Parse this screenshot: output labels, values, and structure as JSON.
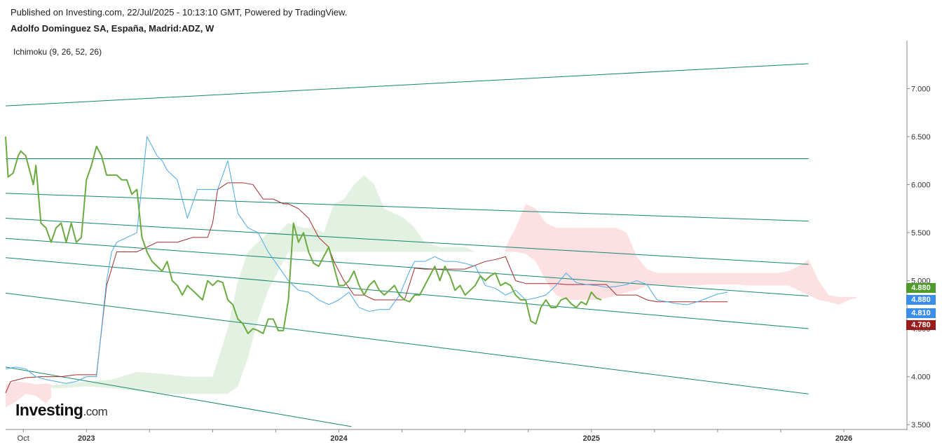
{
  "header": {
    "published": "Published on Investing.com, 22/Jul/2025 - 10:13:10 GMT, Powered by TradingView.",
    "title": "Adolfo Dominguez SA, España, Madrid:ADZ, W"
  },
  "indicator_label": "Ichimoku (9, 26, 52, 26)",
  "logo": {
    "main": "Investing",
    "suffix": ".com"
  },
  "colors": {
    "price": "#6aab3f",
    "conversion": "#4aa8e8",
    "base": "#a52a2a",
    "cloud_bull": "#e3f1e2",
    "cloud_bear": "#fde0e1",
    "trend": "#14876e",
    "axis": "#888888",
    "badge_green": "#4e9a2a",
    "badge_blue": "#3a8de8",
    "badge_red": "#9b1c1c"
  },
  "chart_data": {
    "type": "line",
    "ylim": [
      3.45,
      7.5
    ],
    "xlim": [
      2022.68,
      2026.25
    ],
    "y_ticks": [
      "3.500",
      "4.000",
      "4.500",
      "5.000",
      "5.500",
      "6.000",
      "6.500",
      "7.000"
    ],
    "y_tick_values": [
      3.5,
      4.0,
      4.5,
      5.0,
      5.5,
      6.0,
      6.5,
      7.0
    ],
    "x_ticks": [
      {
        "label": "Oct",
        "x": 2022.75
      },
      {
        "label": "2023",
        "x": 2023.0
      },
      {
        "label": "2024",
        "x": 2024.0
      },
      {
        "label": "2025",
        "x": 2025.0
      },
      {
        "label": "2026",
        "x": 2026.0
      }
    ],
    "x_minor_ticks": [
      2023.25,
      2023.5,
      2023.75,
      2024.25,
      2024.5,
      2024.75,
      2025.25,
      2025.5,
      2025.75
    ],
    "price_badges": [
      {
        "label": "4.880",
        "value": 4.88,
        "color": "#4e9a2a"
      },
      {
        "label": "4.880",
        "value": 4.88,
        "color": "#3a8de8"
      },
      {
        "label": "4.810",
        "value": 4.81,
        "color": "#3a8de8"
      },
      {
        "label": "4.780",
        "value": 4.78,
        "color": "#9b1c1c"
      }
    ],
    "series": [
      {
        "id": "price",
        "x": [
          2022.68,
          2022.69,
          2022.71,
          2022.73,
          2022.74,
          2022.76,
          2022.78,
          2022.79,
          2022.8,
          2022.82,
          2022.84,
          2022.86,
          2022.88,
          2022.9,
          2022.92,
          2022.94,
          2022.96,
          2022.98,
          2023.0,
          2023.02,
          2023.04,
          2023.06,
          2023.08,
          2023.1,
          2023.12,
          2023.14,
          2023.16,
          2023.18,
          2023.2,
          2023.22,
          2023.24,
          2023.26,
          2023.28,
          2023.3,
          2023.32,
          2023.34,
          2023.36,
          2023.38,
          2023.4,
          2023.42,
          2023.44,
          2023.46,
          2023.48,
          2023.5,
          2023.52,
          2023.54,
          2023.56,
          2023.58,
          2023.6,
          2023.62,
          2023.64,
          2023.66,
          2023.68,
          2023.7,
          2023.72,
          2023.74,
          2023.76,
          2023.78,
          2023.8,
          2023.82,
          2023.84,
          2023.86,
          2023.88,
          2023.9,
          2023.92,
          2023.94,
          2023.96,
          2023.98,
          2024.0,
          2024.02,
          2024.04,
          2024.06,
          2024.08,
          2024.1,
          2024.12,
          2024.14,
          2024.16,
          2024.18,
          2024.2,
          2024.22,
          2024.24,
          2024.26,
          2024.28,
          2024.3,
          2024.32,
          2024.34,
          2024.36,
          2024.38,
          2024.4,
          2024.42,
          2024.44,
          2024.46,
          2024.48,
          2024.5,
          2024.52,
          2024.54,
          2024.56,
          2024.58,
          2024.6,
          2024.62,
          2024.64,
          2024.66,
          2024.68,
          2024.7,
          2024.72,
          2024.74,
          2024.76,
          2024.78,
          2024.8,
          2024.82,
          2024.84,
          2024.86,
          2024.88,
          2024.9,
          2024.92,
          2024.94,
          2024.96,
          2024.98,
          2025.0,
          2025.02,
          2025.04
        ],
        "values": [
          6.5,
          6.08,
          6.12,
          6.3,
          6.35,
          6.3,
          6.1,
          6.0,
          6.2,
          5.6,
          5.55,
          5.4,
          5.55,
          5.6,
          5.4,
          5.6,
          5.4,
          5.45,
          6.05,
          6.2,
          6.4,
          6.3,
          6.1,
          6.1,
          6.1,
          6.05,
          6.05,
          5.9,
          5.95,
          5.45,
          5.3,
          5.2,
          5.15,
          5.1,
          5.2,
          5.0,
          4.95,
          4.85,
          4.95,
          4.9,
          4.85,
          4.8,
          5.0,
          4.95,
          5.0,
          4.98,
          4.8,
          4.75,
          4.6,
          4.55,
          4.45,
          4.5,
          4.48,
          4.45,
          4.6,
          4.6,
          4.48,
          4.48,
          4.8,
          5.6,
          5.4,
          5.5,
          5.3,
          5.18,
          5.15,
          5.25,
          5.35,
          5.15,
          4.95,
          4.95,
          5.0,
          5.1,
          4.95,
          4.85,
          4.95,
          5.0,
          4.9,
          4.85,
          4.9,
          4.95,
          4.85,
          4.8,
          4.78,
          4.85,
          4.85,
          4.95,
          5.05,
          5.15,
          5.0,
          5.15,
          5.05,
          4.9,
          4.95,
          4.85,
          4.9,
          4.95,
          5.05,
          5.0,
          5.05,
          5.08,
          4.95,
          4.98,
          4.95,
          4.85,
          4.8,
          4.8,
          4.58,
          4.55,
          4.72,
          4.8,
          4.72,
          4.72,
          4.8,
          4.82,
          4.76,
          4.72,
          4.78,
          4.75,
          4.88,
          4.82,
          4.8
        ]
      },
      {
        "id": "conversion",
        "x": [
          2022.68,
          2022.72,
          2022.76,
          2022.8,
          2022.84,
          2022.88,
          2022.92,
          2022.96,
          2023.0,
          2023.04,
          2023.08,
          2023.1,
          2023.12,
          2023.16,
          2023.2,
          2023.24,
          2023.28,
          2023.3,
          2023.32,
          2023.36,
          2023.4,
          2023.44,
          2023.46,
          2023.48,
          2023.52,
          2023.56,
          2023.6,
          2023.64,
          2023.68,
          2023.72,
          2023.76,
          2023.8,
          2023.84,
          2023.88,
          2023.92,
          2023.96,
          2024.0,
          2024.04,
          2024.08,
          2024.12,
          2024.16,
          2024.2,
          2024.24,
          2024.28,
          2024.3,
          2024.34,
          2024.38,
          2024.42,
          2024.46,
          2024.5,
          2024.54,
          2024.58,
          2024.62,
          2024.66,
          2024.7,
          2024.74,
          2024.78,
          2024.82,
          2024.86,
          2024.9,
          2024.94,
          2024.98,
          2025.02,
          2025.06,
          2025.1,
          2025.14,
          2025.18,
          2025.22,
          2025.26,
          2025.3,
          2025.34,
          2025.38,
          2025.42,
          2025.46,
          2025.5,
          2025.54
        ],
        "values": [
          4.08,
          4.1,
          4.08,
          4.0,
          3.97,
          3.95,
          3.93,
          3.95,
          4.0,
          4.0,
          5.0,
          5.3,
          5.4,
          5.45,
          5.5,
          6.5,
          6.3,
          6.25,
          6.15,
          6.05,
          5.65,
          5.95,
          5.95,
          5.95,
          5.95,
          6.25,
          5.7,
          5.55,
          5.5,
          5.3,
          5.15,
          5.0,
          4.9,
          4.88,
          4.8,
          4.75,
          4.8,
          4.88,
          4.72,
          4.68,
          4.7,
          4.7,
          4.85,
          5.1,
          5.2,
          5.2,
          5.25,
          5.2,
          5.2,
          5.18,
          5.15,
          4.95,
          4.92,
          4.85,
          4.9,
          4.8,
          4.82,
          4.85,
          4.95,
          5.08,
          4.98,
          4.96,
          4.95,
          4.93,
          4.94,
          4.96,
          5.0,
          4.96,
          4.8,
          4.78,
          4.76,
          4.75,
          4.78,
          4.82,
          4.86,
          4.88
        ]
      },
      {
        "id": "base",
        "x": [
          2022.68,
          2022.7,
          2022.76,
          2022.82,
          2022.9,
          2022.96,
          2023.0,
          2023.04,
          2023.08,
          2023.12,
          2023.2,
          2023.28,
          2023.36,
          2023.42,
          2023.48,
          2023.5,
          2023.52,
          2023.56,
          2023.62,
          2023.66,
          2023.7,
          2023.74,
          2023.78,
          2023.8,
          2023.84,
          2023.88,
          2023.92,
          2023.96,
          2023.98,
          2024.02,
          2024.06,
          2024.1,
          2024.14,
          2024.18,
          2024.22,
          2024.26,
          2024.3,
          2024.34,
          2024.38,
          2024.42,
          2024.46,
          2024.5,
          2024.54,
          2024.58,
          2024.62,
          2024.66,
          2024.7,
          2024.74,
          2024.78,
          2024.82,
          2024.86,
          2024.9,
          2024.94,
          2024.98,
          2025.02,
          2025.06,
          2025.1,
          2025.14,
          2025.18,
          2025.22,
          2025.26,
          2025.3,
          2025.34,
          2025.38,
          2025.42,
          2025.46,
          2025.5,
          2025.54
        ],
        "values": [
          3.83,
          3.95,
          3.99,
          4.0,
          4.0,
          4.02,
          4.02,
          4.02,
          4.95,
          5.3,
          5.3,
          5.4,
          5.4,
          5.45,
          5.45,
          5.6,
          5.95,
          6.02,
          6.02,
          6.0,
          5.85,
          5.85,
          5.8,
          5.8,
          5.75,
          5.65,
          5.45,
          5.35,
          5.2,
          5.0,
          4.85,
          4.85,
          4.8,
          4.8,
          4.8,
          4.8,
          5.13,
          5.12,
          5.12,
          5.12,
          5.12,
          5.12,
          5.16,
          5.2,
          5.22,
          5.25,
          5.0,
          4.97,
          4.97,
          4.97,
          4.97,
          4.96,
          4.96,
          4.96,
          4.96,
          4.96,
          4.85,
          4.85,
          4.85,
          4.8,
          4.78,
          4.78,
          4.78,
          4.78,
          4.78,
          4.78,
          4.78,
          4.78
        ]
      },
      {
        "id": "cloud_bull",
        "x": [
          2022.68,
          2022.8,
          2022.9,
          2023.0,
          2023.1,
          2023.2,
          2023.3,
          2023.4,
          2023.5,
          2023.56,
          2023.6,
          2023.64,
          2023.68,
          2023.72,
          2023.76,
          2023.8,
          2023.86,
          2023.9,
          2023.94,
          2023.98,
          2024.02,
          2024.06,
          2024.1,
          2024.14,
          2024.18,
          2024.22,
          2024.26,
          2024.3,
          2024.34,
          2024.4,
          2024.46,
          2024.5,
          2024.54,
          2024.58,
          2024.62,
          2024.66
        ],
        "upper": [
          3.88,
          3.9,
          3.92,
          3.95,
          3.97,
          4.05,
          4.03,
          4.0,
          4.0,
          4.5,
          5.0,
          5.3,
          5.4,
          5.5,
          5.5,
          5.6,
          5.55,
          5.55,
          5.5,
          5.8,
          5.85,
          6.0,
          6.1,
          6.0,
          5.75,
          5.7,
          5.65,
          5.55,
          5.4,
          5.35,
          5.35,
          5.35,
          5.3,
          5.3,
          5.3,
          5.3
        ],
        "lower": [
          3.88,
          3.88,
          3.88,
          3.9,
          3.88,
          3.85,
          3.82,
          3.82,
          3.82,
          3.82,
          3.9,
          4.2,
          4.6,
          4.9,
          5.1,
          5.3,
          5.3,
          5.3,
          5.3,
          5.3,
          5.3,
          5.3,
          5.3,
          5.3,
          5.3,
          5.3,
          5.3,
          5.3,
          5.3,
          5.3,
          5.3,
          5.3,
          5.3,
          5.3,
          5.3,
          5.3
        ]
      },
      {
        "id": "cloud_bear",
        "x": [
          2022.68,
          2022.72,
          2022.76,
          2022.8,
          2022.84,
          2022.86
        ],
        "upper": [
          3.92,
          3.95,
          3.94,
          3.92,
          3.93,
          3.92
        ],
        "lower": [
          3.68,
          3.74,
          3.82,
          3.8,
          3.72,
          3.78
        ]
      },
      {
        "id": "cloud_bear2",
        "x": [
          2024.66,
          2024.7,
          2024.74,
          2024.78,
          2024.82,
          2024.86,
          2024.9,
          2024.94,
          2024.98,
          2025.02,
          2025.06,
          2025.1,
          2025.14,
          2025.18,
          2025.22,
          2025.26,
          2025.3,
          2025.34,
          2025.38,
          2025.42,
          2025.46,
          2025.5,
          2025.54,
          2025.58,
          2025.62,
          2025.66,
          2025.7,
          2025.74,
          2025.78,
          2025.82,
          2025.86,
          2025.9,
          2025.94,
          2025.98,
          2026.02,
          2026.05
        ],
        "upper": [
          5.35,
          5.55,
          5.8,
          5.75,
          5.6,
          5.55,
          5.55,
          5.55,
          5.55,
          5.55,
          5.55,
          5.55,
          5.5,
          5.25,
          5.12,
          5.08,
          5.08,
          5.08,
          5.08,
          5.08,
          5.08,
          5.08,
          5.08,
          5.08,
          5.08,
          5.08,
          5.08,
          5.08,
          5.1,
          5.15,
          5.22,
          5.0,
          4.85,
          4.83,
          4.83,
          4.83
        ],
        "lower": [
          5.3,
          5.3,
          5.28,
          5.2,
          5.0,
          4.85,
          4.8,
          4.8,
          4.8,
          4.8,
          4.82,
          4.85,
          4.88,
          4.9,
          4.95,
          4.95,
          4.95,
          4.95,
          4.95,
          4.95,
          4.96,
          4.96,
          4.96,
          4.96,
          4.95,
          4.95,
          4.95,
          4.95,
          4.95,
          4.9,
          4.85,
          4.8,
          4.78,
          4.75,
          4.8,
          4.82
        ]
      }
    ],
    "trend_lines": [
      {
        "x": [
          2022.68,
          2025.86
        ],
        "y": [
          6.82,
          7.26
        ]
      },
      {
        "x": [
          2022.68,
          2025.86
        ],
        "y": [
          6.27,
          6.27
        ]
      },
      {
        "x": [
          2022.68,
          2025.86
        ],
        "y": [
          5.91,
          5.62
        ]
      },
      {
        "x": [
          2022.68,
          2025.86
        ],
        "y": [
          5.65,
          5.17
        ]
      },
      {
        "x": [
          2022.68,
          2025.86
        ],
        "y": [
          5.44,
          4.84
        ]
      },
      {
        "x": [
          2022.68,
          2025.86
        ],
        "y": [
          5.24,
          4.5
        ]
      },
      {
        "x": [
          2022.68,
          2025.86
        ],
        "y": [
          4.87,
          3.82
        ]
      },
      {
        "x": [
          2022.68,
          2024.05
        ],
        "y": [
          4.1,
          3.48
        ]
      }
    ]
  }
}
